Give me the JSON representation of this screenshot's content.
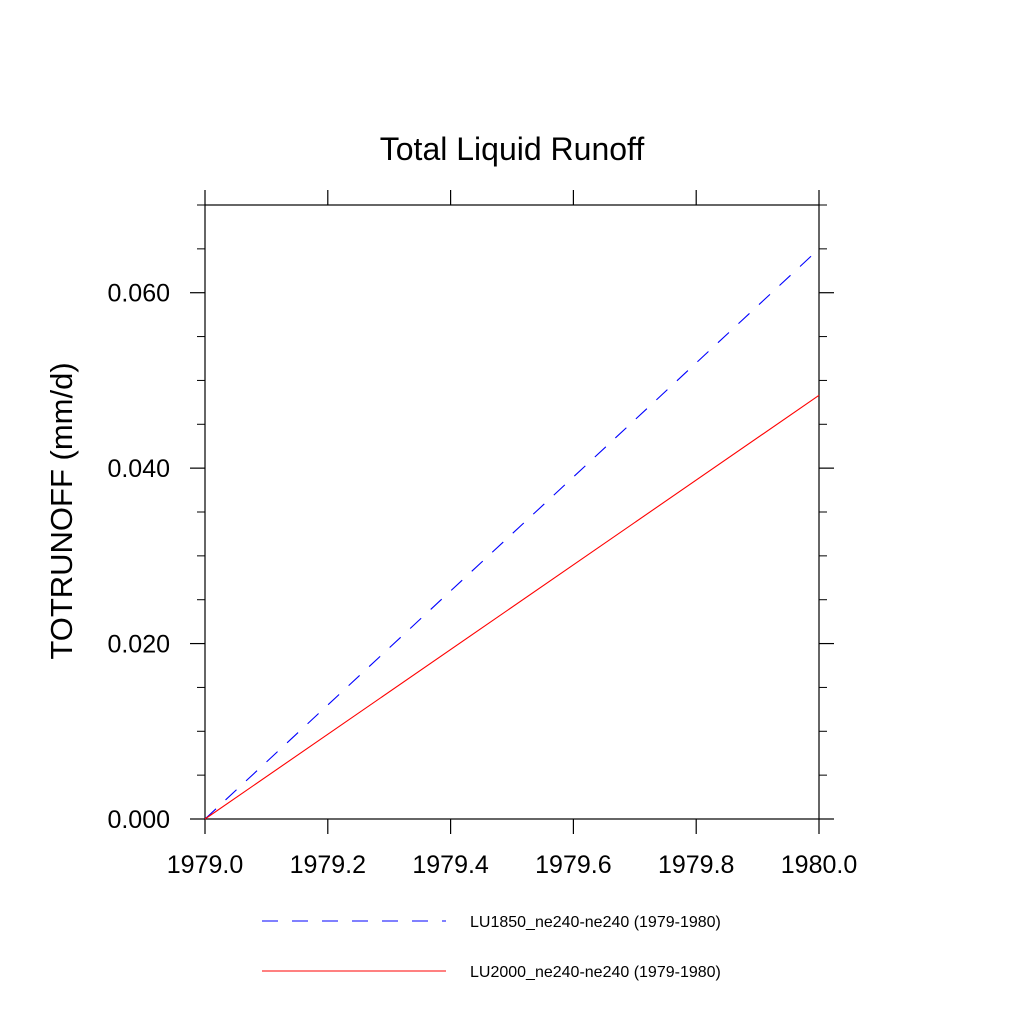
{
  "chart_data": {
    "type": "line",
    "title": "Total Liquid Runoff",
    "xlabel": "",
    "ylabel": "TOTRUNOFF  (mm/d)",
    "xlim": [
      1979.0,
      1980.0
    ],
    "ylim": [
      0.0,
      0.07
    ],
    "xticks": [
      1979.0,
      1979.2,
      1979.4,
      1979.6,
      1979.8,
      1980.0
    ],
    "xtick_labels": [
      "1979.0",
      "1979.2",
      "1979.4",
      "1979.6",
      "1979.8",
      "1980.0"
    ],
    "yticks": [
      0.0,
      0.02,
      0.04,
      0.06
    ],
    "ytick_labels": [
      "0.000",
      "0.020",
      "0.040",
      "0.060"
    ],
    "yminor_step": 0.005,
    "xminor_step": 0.2,
    "grid": false,
    "legend_position": "bottom",
    "series": [
      {
        "name": "LU1850_ne240-ne240 (1979-1980)",
        "color": "#0000ff",
        "style": "dashed",
        "x": [
          1979.0,
          1980.0
        ],
        "y": [
          0.0,
          0.065
        ]
      },
      {
        "name": "LU2000_ne240-ne240 (1979-1980)",
        "color": "#ff0000",
        "style": "solid",
        "x": [
          1979.0,
          1980.0
        ],
        "y": [
          0.0,
          0.0483
        ]
      }
    ]
  }
}
